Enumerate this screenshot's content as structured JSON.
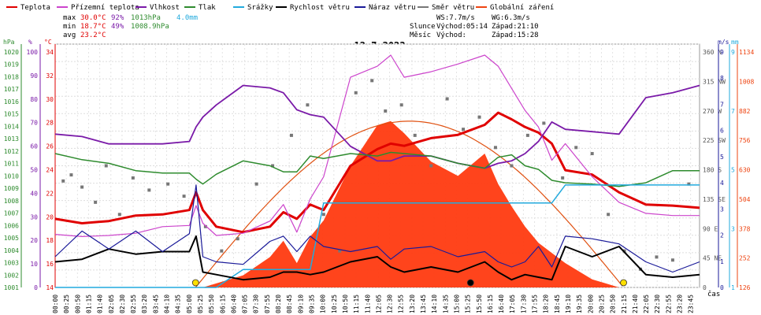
{
  "chart_data": {
    "type": "line",
    "title": "12.7.2023",
    "legend": [
      {
        "name": "Teplota",
        "color": "#e00000"
      },
      {
        "name": "Přízemní teplota",
        "color": "#cc44cc"
      },
      {
        "name": "Vlhkost",
        "color": "#7a1aa8"
      },
      {
        "name": "Tlak",
        "color": "#2e8b2e"
      },
      {
        "name": "Srážky",
        "color": "#22aadd"
      },
      {
        "name": "Rychlost větru",
        "color": "#000000"
      },
      {
        "name": "Náraz větru",
        "color": "#1a1a99"
      },
      {
        "name": "Směr větru",
        "color": "#777777"
      },
      {
        "name": "Globální záření",
        "color": "#ee4411"
      }
    ],
    "stats": {
      "max_label": "max",
      "max_temp": "30.0°C",
      "max_hum": "92%",
      "max_press": "1013hPa",
      "rain": "4.0mm",
      "min_label": "min",
      "min_temp": "18.7°C",
      "min_hum": "49%",
      "min_press": "1008.9hPa",
      "avg_label": "avg",
      "avg_temp": "23.2°C",
      "ws": "WS:7.7m/s",
      "wg": "WG:6.3m/s",
      "sun_label": "Slunce",
      "sun_rise": "Východ:05:14",
      "sun_set": "Západ:21:10",
      "moon_label": "Měsíc",
      "moon_rise": "Východ:",
      "moon_set": "Západ:15:28"
    },
    "axes": {
      "hpa_unit": "hPa",
      "hpa_ticks": [
        "1020",
        "1019",
        "1018",
        "1017",
        "1016",
        "1015",
        "1014",
        "1013",
        "1012",
        "1011",
        "1010",
        "1009",
        "1008",
        "1007",
        "1006",
        "1005",
        "1004",
        "1003",
        "1002",
        "1001"
      ],
      "hum_unit": "%",
      "hum_ticks": [
        "100",
        "90",
        "80",
        "70",
        "60",
        "50",
        "40",
        "30",
        "20",
        "10",
        "0"
      ],
      "temp_unit": "°C",
      "temp_ticks": [
        "34",
        "32",
        "30",
        "28",
        "26",
        "24",
        "22",
        "20",
        "18",
        "16",
        "14"
      ],
      "dir_ticks": [
        "360 N",
        "315 NW",
        "270 W",
        "225 SW",
        "180 S",
        "135 SE",
        "90 E",
        "45 NE",
        "0"
      ],
      "ms_unit": "m/s",
      "ms_ticks": [
        "9",
        "8",
        "7",
        "6",
        "5",
        "4",
        "3",
        "2",
        "1",
        "0"
      ],
      "mm_unit": "mm",
      "mm_ticks": [
        "9",
        "7",
        "5",
        "3",
        "1"
      ],
      "rad_ticks": [
        "1134",
        "1008",
        "882",
        "756",
        "630",
        "504",
        "378",
        "252",
        "126"
      ],
      "x_unit": "čas",
      "x_ticks": [
        "00:00",
        "00:25",
        "00:50",
        "01:15",
        "01:40",
        "02:05",
        "02:30",
        "02:55",
        "03:20",
        "03:45",
        "04:10",
        "04:35",
        "05:00",
        "05:25",
        "05:50",
        "06:15",
        "06:40",
        "07:05",
        "07:30",
        "07:55",
        "08:20",
        "08:45",
        "09:10",
        "09:35",
        "10:00",
        "10:25",
        "10:50",
        "11:15",
        "11:40",
        "12:05",
        "12:30",
        "12:55",
        "13:20",
        "13:45",
        "14:10",
        "14:35",
        "15:00",
        "15:25",
        "15:50",
        "16:15",
        "16:40",
        "17:05",
        "17:30",
        "17:55",
        "18:20",
        "18:45",
        "19:10",
        "19:35",
        "20:00",
        "20:25",
        "20:50",
        "21:15",
        "21:40",
        "22:05",
        "22:30",
        "22:55",
        "23:20",
        "23:45"
      ]
    },
    "x_hours": [
      0,
      1,
      2,
      3,
      4,
      5,
      5.25,
      5.5,
      6,
      7,
      8,
      8.5,
      9,
      9.5,
      10,
      11,
      12,
      12.5,
      13,
      14,
      15,
      16,
      16.5,
      17,
      17.5,
      18,
      18.5,
      19,
      20,
      21,
      22,
      23,
      24
    ],
    "series": [
      {
        "name": "Teplota",
        "unit": "°C",
        "values": [
          20.2,
          19.8,
          20.0,
          20.5,
          20.6,
          21.0,
          22.6,
          21.0,
          19.5,
          19.0,
          19.5,
          20.8,
          20.2,
          21.5,
          21.0,
          25.0,
          26.5,
          27.0,
          26.8,
          27.5,
          27.8,
          28.7,
          29.8,
          29.2,
          28.5,
          28.0,
          27.0,
          24.6,
          24.2,
          22.6,
          21.5,
          21.4,
          21.2
        ]
      },
      {
        "name": "Přízemní teplota",
        "unit": "°C",
        "values": [
          18.8,
          18.6,
          18.7,
          18.9,
          19.5,
          19.6,
          21.4,
          19.8,
          18.7,
          18.9,
          20.0,
          21.5,
          19.0,
          22.0,
          24.0,
          33.0,
          34.0,
          35.0,
          33.0,
          33.5,
          34.2,
          35.0,
          34.0,
          32.0,
          30.0,
          28.5,
          25.5,
          27.0,
          24.0,
          21.7,
          20.7,
          20.5,
          20.5
        ]
      },
      {
        "name": "Vlhkost",
        "unit": "%",
        "values": [
          63,
          62,
          59,
          59,
          59,
          60,
          66,
          70,
          75,
          83,
          82,
          80,
          73,
          71,
          70,
          58,
          52,
          52,
          54,
          54,
          51,
          49,
          51,
          52,
          55,
          60,
          68,
          65,
          64,
          63,
          78,
          80,
          83
        ]
      },
      {
        "name": "Tlak",
        "unit": "hPa",
        "values": [
          1012.0,
          1011.5,
          1011.2,
          1010.6,
          1010.4,
          1010.4,
          1009.9,
          1009.5,
          1010.3,
          1011.4,
          1011.0,
          1010.5,
          1010.5,
          1011.8,
          1011.6,
          1012.0,
          1011.8,
          1012.1,
          1012.0,
          1011.8,
          1011.2,
          1010.8,
          1011.7,
          1011.9,
          1011.0,
          1010.7,
          1009.8,
          1009.6,
          1009.5,
          1009.3,
          1009.6,
          1010.6,
          1010.6
        ]
      },
      {
        "name": "Srážky",
        "unit": "mm",
        "values": [
          0,
          0,
          0,
          0,
          0,
          0,
          0,
          0,
          0,
          0.7,
          0.7,
          0.7,
          0.7,
          0.7,
          3.3,
          3.3,
          3.3,
          3.3,
          3.3,
          3.3,
          3.3,
          3.3,
          3.3,
          3.3,
          3.3,
          3.3,
          3.3,
          4.0,
          4.0,
          4.0,
          4.0,
          4.0,
          4.0
        ]
      },
      {
        "name": "Rychlost větru",
        "unit": "m/s",
        "values": [
          1.0,
          1.1,
          1.5,
          1.3,
          1.4,
          1.4,
          2.0,
          0.6,
          0.5,
          0.3,
          0.4,
          0.6,
          0.6,
          0.5,
          0.6,
          1.0,
          1.2,
          0.8,
          0.6,
          0.8,
          0.6,
          1.0,
          0.6,
          0.3,
          0.5,
          0.4,
          0.3,
          1.6,
          1.2,
          1.6,
          0.5,
          0.4,
          0.5
        ]
      },
      {
        "name": "Náraz větru",
        "unit": "m/s",
        "values": [
          1.2,
          2.2,
          1.5,
          2.2,
          1.4,
          2.1,
          4.0,
          1.2,
          1.0,
          0.9,
          1.8,
          2.0,
          1.4,
          2.0,
          1.6,
          1.4,
          1.6,
          1.1,
          1.5,
          1.6,
          1.2,
          1.4,
          1.0,
          0.8,
          1.0,
          1.6,
          0.8,
          2.0,
          1.9,
          1.7,
          1.0,
          0.6,
          1.0
        ]
      },
      {
        "name": "Globální záření",
        "unit": "W/m²",
        "values": [
          0,
          0,
          0,
          0,
          0,
          0,
          0,
          0,
          20,
          60,
          150,
          230,
          120,
          250,
          330,
          600,
          800,
          820,
          760,
          620,
          550,
          660,
          510,
          400,
          300,
          220,
          170,
          120,
          40,
          0,
          0,
          0,
          0
        ]
      }
    ],
    "wind_direction_samples": {
      "hours": [
        0.3,
        0.6,
        1.0,
        1.5,
        1.9,
        2.4,
        2.9,
        3.5,
        4.2,
        4.8,
        5.6,
        6.2,
        6.8,
        7.5,
        8.1,
        8.8,
        9.4,
        10.0,
        10.6,
        11.2,
        11.8,
        12.3,
        12.9,
        13.4,
        14.0,
        14.6,
        15.2,
        15.8,
        16.4,
        17.0,
        17.6,
        18.2,
        18.9,
        19.4,
        20.0,
        20.6,
        21.2,
        21.8,
        22.4,
        23.0,
        23.6
      ],
      "degrees": [
        175,
        185,
        165,
        140,
        200,
        120,
        180,
        160,
        170,
        150,
        100,
        60,
        80,
        170,
        200,
        250,
        300,
        120,
        60,
        320,
        340,
        290,
        300,
        250,
        200,
        310,
        260,
        280,
        230,
        200,
        250,
        270,
        180,
        230,
        220,
        120,
        60,
        30,
        50,
        45,
        170
      ]
    },
    "theoretical_radiation_peak": {
      "hour": 12.75,
      "value": 820
    },
    "markers": [
      {
        "label": "sunrise",
        "hour": 5.23,
        "color": "#ffe000"
      },
      {
        "label": "moonset",
        "hour": 15.47,
        "color": "#000000"
      },
      {
        "label": "sunset",
        "hour": 21.17,
        "color": "#ffe000"
      }
    ]
  }
}
